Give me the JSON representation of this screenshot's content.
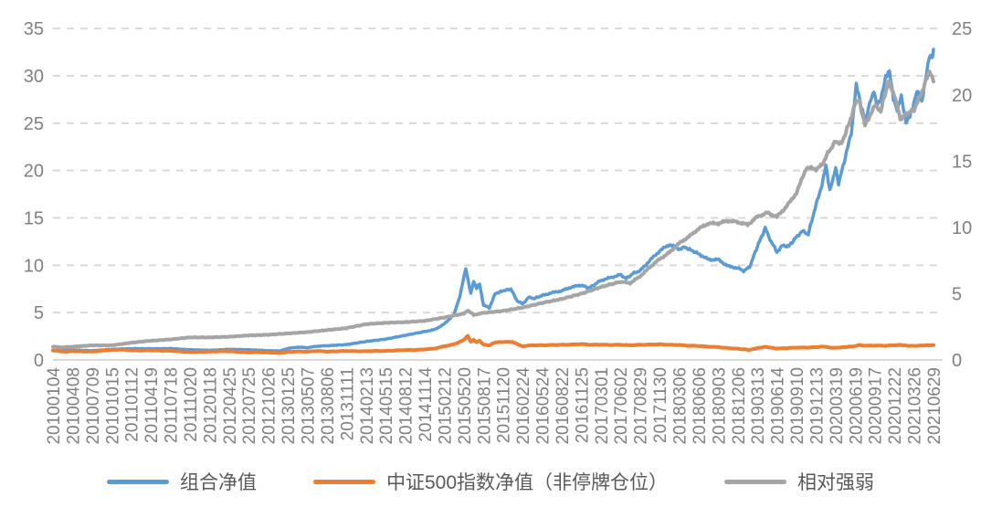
{
  "chart_data": {
    "type": "line",
    "title": "",
    "grid": "horizontal-dashed",
    "legend_position": "bottom",
    "colors": {
      "gridline": "#d9d9d9",
      "axis_line": "#d9d9d9",
      "tick_label": "#808080",
      "legend_text": "#595959"
    },
    "left_axis": {
      "min": 0,
      "max": 35,
      "ticks": [
        0,
        5,
        10,
        15,
        20,
        25,
        30,
        35
      ]
    },
    "right_axis": {
      "min": 0,
      "max": 25,
      "ticks": [
        0,
        5,
        10,
        15,
        20,
        25
      ]
    },
    "x_tick_labels": [
      "20100104",
      "20100408",
      "20100709",
      "20101015",
      "20110112",
      "20110419",
      "20110718",
      "20111020",
      "20120118",
      "20120425",
      "20120725",
      "20121026",
      "20130125",
      "20130507",
      "20130806",
      "20131111",
      "20140213",
      "20140515",
      "20140812",
      "20141114",
      "20150212",
      "20150520",
      "20150817",
      "20151120",
      "20160224",
      "20160524",
      "20160822",
      "20161125",
      "20170301",
      "20170602",
      "20170829",
      "20171130",
      "20180306",
      "20180606",
      "20180903",
      "20181206",
      "20190313",
      "20190614",
      "20190910",
      "20191213",
      "20200319",
      "20200619",
      "20200917",
      "20201222",
      "20210326",
      "20210629"
    ],
    "series": [
      {
        "name": "组合净值",
        "color": "#5B9BD5",
        "axis": "left",
        "points": [
          [
            0,
            1.0
          ],
          [
            1,
            1.05
          ],
          [
            2,
            0.98
          ],
          [
            3,
            1.12
          ],
          [
            4,
            1.2
          ],
          [
            5,
            1.18
          ],
          [
            6,
            1.2
          ],
          [
            7,
            1.08
          ],
          [
            8,
            1.02
          ],
          [
            9,
            1.12
          ],
          [
            10,
            1.08
          ],
          [
            11,
            0.98
          ],
          [
            11.6,
            0.95
          ],
          [
            12,
            1.22
          ],
          [
            12.5,
            1.35
          ],
          [
            13,
            1.3
          ],
          [
            13.5,
            1.45
          ],
          [
            14,
            1.5
          ],
          [
            15,
            1.62
          ],
          [
            16,
            1.95
          ],
          [
            17,
            2.2
          ],
          [
            18,
            2.6
          ],
          [
            19,
            3.0
          ],
          [
            19.5,
            3.2
          ],
          [
            20,
            3.8
          ],
          [
            20.5,
            4.8
          ],
          [
            20.8,
            6.8
          ],
          [
            21.1,
            9.7
          ],
          [
            21.35,
            7.0
          ],
          [
            21.5,
            8.3
          ],
          [
            21.65,
            7.6
          ],
          [
            21.8,
            8.1
          ],
          [
            22,
            5.8
          ],
          [
            22.3,
            5.5
          ],
          [
            22.6,
            7.0
          ],
          [
            23,
            7.3
          ],
          [
            23.4,
            7.5
          ],
          [
            23.7,
            6.3
          ],
          [
            24,
            5.9
          ],
          [
            24.3,
            6.6
          ],
          [
            24.6,
            6.5
          ],
          [
            25,
            6.8
          ],
          [
            25.5,
            7.1
          ],
          [
            26,
            7.3
          ],
          [
            26.5,
            7.7
          ],
          [
            27,
            7.9
          ],
          [
            27.4,
            7.6
          ],
          [
            28,
            8.4
          ],
          [
            28.5,
            8.7
          ],
          [
            29,
            9.0
          ],
          [
            29.3,
            8.6
          ],
          [
            29.7,
            9.2
          ],
          [
            30,
            9.4
          ],
          [
            30.5,
            10.5
          ],
          [
            31,
            11.5
          ],
          [
            31.5,
            12.2
          ],
          [
            32,
            11.7
          ],
          [
            32.3,
            11.9
          ],
          [
            33,
            11.2
          ],
          [
            33.5,
            10.6
          ],
          [
            34,
            10.6
          ],
          [
            34.5,
            9.9
          ],
          [
            35,
            9.7
          ],
          [
            35.3,
            9.4
          ],
          [
            35.6,
            9.8
          ],
          [
            36,
            12.0
          ],
          [
            36.4,
            13.9
          ],
          [
            36.7,
            12.5
          ],
          [
            37,
            11.4
          ],
          [
            37.3,
            12.1
          ],
          [
            37.6,
            12.0
          ],
          [
            38,
            13.0
          ],
          [
            38.3,
            13.6
          ],
          [
            38.6,
            13.3
          ],
          [
            39,
            16.4
          ],
          [
            39.3,
            18.5
          ],
          [
            39.5,
            20.5
          ],
          [
            39.7,
            17.8
          ],
          [
            40,
            20.3
          ],
          [
            40.15,
            18.6
          ],
          [
            40.5,
            21.5
          ],
          [
            40.8,
            24.0
          ],
          [
            41.05,
            29.0
          ],
          [
            41.3,
            26.8
          ],
          [
            41.55,
            25.4
          ],
          [
            41.8,
            27.5
          ],
          [
            41.95,
            28.3
          ],
          [
            42.1,
            26.8
          ],
          [
            42.3,
            27.3
          ],
          [
            42.55,
            30.0
          ],
          [
            42.75,
            30.6
          ],
          [
            42.95,
            27.5
          ],
          [
            43.15,
            26.2
          ],
          [
            43.35,
            27.8
          ],
          [
            43.6,
            25.2
          ],
          [
            43.8,
            25.8
          ],
          [
            43.95,
            26.8
          ],
          [
            44.15,
            28.4
          ],
          [
            44.4,
            27.2
          ],
          [
            44.65,
            30.5
          ],
          [
            44.8,
            32.3
          ],
          [
            44.9,
            31.7
          ],
          [
            45,
            32.8
          ]
        ]
      },
      {
        "name": "中证500指数净值（非停牌仓位）",
        "color": "#ED7D31",
        "axis": "left",
        "points": [
          [
            0,
            1.0
          ],
          [
            0.3,
            0.95
          ],
          [
            0.6,
            0.87
          ],
          [
            1,
            0.93
          ],
          [
            1.5,
            0.9
          ],
          [
            2,
            0.88
          ],
          [
            2.5,
            0.98
          ],
          [
            3,
            1.06
          ],
          [
            3.5,
            1.1
          ],
          [
            4,
            1.02
          ],
          [
            4.5,
            1.0
          ],
          [
            5,
            1.02
          ],
          [
            5.5,
            0.98
          ],
          [
            6,
            0.97
          ],
          [
            6.5,
            0.9
          ],
          [
            7,
            0.82
          ],
          [
            7.5,
            0.85
          ],
          [
            8,
            0.88
          ],
          [
            8.5,
            0.92
          ],
          [
            9,
            0.92
          ],
          [
            9.5,
            0.85
          ],
          [
            10,
            0.8
          ],
          [
            10.5,
            0.82
          ],
          [
            11,
            0.78
          ],
          [
            11.6,
            0.73
          ],
          [
            12,
            0.85
          ],
          [
            12.5,
            0.9
          ],
          [
            13,
            0.88
          ],
          [
            13.5,
            0.95
          ],
          [
            14,
            0.88
          ],
          [
            14.5,
            0.92
          ],
          [
            15,
            0.95
          ],
          [
            15.5,
            0.92
          ],
          [
            16,
            0.92
          ],
          [
            16.5,
            0.95
          ],
          [
            17,
            0.95
          ],
          [
            17.5,
            1.0
          ],
          [
            18,
            1.05
          ],
          [
            18.5,
            1.05
          ],
          [
            19,
            1.12
          ],
          [
            19.5,
            1.2
          ],
          [
            20,
            1.45
          ],
          [
            20.5,
            1.65
          ],
          [
            21,
            2.1
          ],
          [
            21.2,
            2.55
          ],
          [
            21.35,
            1.9
          ],
          [
            21.5,
            2.1
          ],
          [
            21.65,
            1.85
          ],
          [
            21.8,
            2.05
          ],
          [
            22,
            1.6
          ],
          [
            22.3,
            1.55
          ],
          [
            22.6,
            1.85
          ],
          [
            23,
            1.9
          ],
          [
            23.5,
            1.9
          ],
          [
            23.8,
            1.6
          ],
          [
            24,
            1.45
          ],
          [
            24.5,
            1.55
          ],
          [
            25,
            1.55
          ],
          [
            25.5,
            1.58
          ],
          [
            26,
            1.6
          ],
          [
            26.5,
            1.62
          ],
          [
            27,
            1.68
          ],
          [
            27.5,
            1.6
          ],
          [
            28,
            1.62
          ],
          [
            28.5,
            1.58
          ],
          [
            29,
            1.6
          ],
          [
            29.5,
            1.55
          ],
          [
            30,
            1.6
          ],
          [
            30.5,
            1.62
          ],
          [
            31,
            1.65
          ],
          [
            31.5,
            1.6
          ],
          [
            32,
            1.58
          ],
          [
            32.5,
            1.5
          ],
          [
            33,
            1.48
          ],
          [
            33.5,
            1.4
          ],
          [
            34,
            1.35
          ],
          [
            34.5,
            1.25
          ],
          [
            35,
            1.18
          ],
          [
            35.6,
            1.06
          ],
          [
            36,
            1.25
          ],
          [
            36.4,
            1.38
          ],
          [
            37,
            1.2
          ],
          [
            37.5,
            1.25
          ],
          [
            38,
            1.3
          ],
          [
            38.5,
            1.3
          ],
          [
            39,
            1.35
          ],
          [
            39.4,
            1.42
          ],
          [
            39.7,
            1.3
          ],
          [
            40,
            1.28
          ],
          [
            40.3,
            1.33
          ],
          [
            40.7,
            1.4
          ],
          [
            41,
            1.45
          ],
          [
            41.2,
            1.58
          ],
          [
            41.5,
            1.5
          ],
          [
            42,
            1.52
          ],
          [
            42.5,
            1.5
          ],
          [
            43,
            1.55
          ],
          [
            43.3,
            1.58
          ],
          [
            43.7,
            1.5
          ],
          [
            44,
            1.48
          ],
          [
            44.3,
            1.52
          ],
          [
            44.7,
            1.55
          ],
          [
            45,
            1.57
          ]
        ]
      },
      {
        "name": "相对强弱",
        "color": "#A5A5A5",
        "axis": "right",
        "points": [
          [
            0,
            1.0
          ],
          [
            0.5,
            0.95
          ],
          [
            1,
            1.0
          ],
          [
            2,
            1.1
          ],
          [
            3,
            1.1
          ],
          [
            4,
            1.3
          ],
          [
            5,
            1.45
          ],
          [
            6,
            1.55
          ],
          [
            7,
            1.7
          ],
          [
            8,
            1.7
          ],
          [
            9,
            1.75
          ],
          [
            10,
            1.85
          ],
          [
            11,
            1.9
          ],
          [
            12,
            2.0
          ],
          [
            13,
            2.1
          ],
          [
            14,
            2.25
          ],
          [
            15,
            2.4
          ],
          [
            16,
            2.7
          ],
          [
            17,
            2.8
          ],
          [
            18,
            2.85
          ],
          [
            19,
            2.95
          ],
          [
            20,
            3.2
          ],
          [
            21,
            3.5
          ],
          [
            21.2,
            3.75
          ],
          [
            21.5,
            3.4
          ],
          [
            22,
            3.55
          ],
          [
            23,
            3.7
          ],
          [
            24,
            3.95
          ],
          [
            25,
            4.3
          ],
          [
            26,
            4.6
          ],
          [
            27,
            5.0
          ],
          [
            28,
            5.5
          ],
          [
            29,
            5.9
          ],
          [
            29.5,
            5.8
          ],
          [
            30,
            6.3
          ],
          [
            30.5,
            7.0
          ],
          [
            31,
            7.6
          ],
          [
            31.5,
            8.1
          ],
          [
            32,
            8.8
          ],
          [
            32.5,
            9.3
          ],
          [
            33,
            9.9
          ],
          [
            33.5,
            10.3
          ],
          [
            34,
            10.3
          ],
          [
            34.5,
            10.5
          ],
          [
            35,
            10.4
          ],
          [
            35.5,
            10.2
          ],
          [
            36,
            10.8
          ],
          [
            36.5,
            11.1
          ],
          [
            37,
            10.8
          ],
          [
            37.5,
            11.6
          ],
          [
            38,
            12.6
          ],
          [
            38.5,
            14.5
          ],
          [
            39,
            14.4
          ],
          [
            39.3,
            14.7
          ],
          [
            39.6,
            15.6
          ],
          [
            40,
            16.5
          ],
          [
            40.3,
            16.3
          ],
          [
            40.7,
            17.9
          ],
          [
            41,
            19.3
          ],
          [
            41.2,
            19.6
          ],
          [
            41.5,
            17.7
          ],
          [
            41.8,
            18.6
          ],
          [
            42,
            19.2
          ],
          [
            42.3,
            18.8
          ],
          [
            42.7,
            21.0
          ],
          [
            43,
            20.0
          ],
          [
            43.3,
            18.2
          ],
          [
            43.6,
            18.5
          ],
          [
            44,
            18.9
          ],
          [
            44.3,
            19.8
          ],
          [
            44.6,
            21.0
          ],
          [
            44.8,
            21.7
          ],
          [
            45,
            21.0
          ]
        ]
      }
    ]
  }
}
